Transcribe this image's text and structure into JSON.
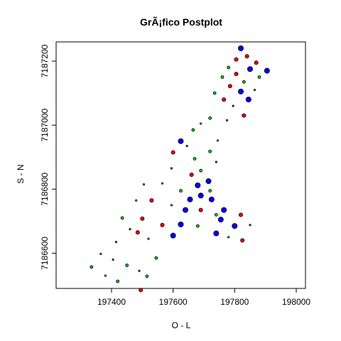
{
  "chart_data": {
    "type": "scatter",
    "title": "GrÃ¡fico Postplot",
    "xlabel": "O - L",
    "ylabel": "S - N",
    "xlim": [
      197220,
      198030
    ],
    "ylim": [
      7186490,
      7187260
    ],
    "xticks": [
      197400,
      197600,
      197800,
      198000
    ],
    "yticks": [
      7186600,
      7186800,
      7187000,
      7187200
    ],
    "colors": {
      "low": "#00cc00",
      "mid": "#ff0000",
      "high": "#0000ff"
    },
    "points": [
      {
        "x": 197820,
        "y": 7187240,
        "c": "high",
        "s": 4
      },
      {
        "x": 197840,
        "y": 7187215,
        "c": "mid",
        "s": 3
      },
      {
        "x": 197805,
        "y": 7187205,
        "c": "mid",
        "s": 3
      },
      {
        "x": 197870,
        "y": 7187195,
        "c": "mid",
        "s": 3
      },
      {
        "x": 197780,
        "y": 7187180,
        "c": "low",
        "s": 2
      },
      {
        "x": 197850,
        "y": 7187175,
        "c": "high",
        "s": 4
      },
      {
        "x": 197905,
        "y": 7187170,
        "c": "high",
        "s": 4
      },
      {
        "x": 197805,
        "y": 7187160,
        "c": "mid",
        "s": 3
      },
      {
        "x": 197880,
        "y": 7187150,
        "c": "low",
        "s": 2
      },
      {
        "x": 197760,
        "y": 7187150,
        "c": "low",
        "s": 2
      },
      {
        "x": 197830,
        "y": 7187135,
        "c": "low",
        "s": 2
      },
      {
        "x": 197785,
        "y": 7187122,
        "c": "mid",
        "s": 3
      },
      {
        "x": 197865,
        "y": 7187110,
        "c": "low",
        "s": 1
      },
      {
        "x": 197820,
        "y": 7187105,
        "c": "high",
        "s": 4
      },
      {
        "x": 197735,
        "y": 7187100,
        "c": "low",
        "s": 2
      },
      {
        "x": 197845,
        "y": 7187080,
        "c": "high",
        "s": 4
      },
      {
        "x": 197765,
        "y": 7187080,
        "c": "mid",
        "s": 3
      },
      {
        "x": 197795,
        "y": 7187060,
        "c": "low",
        "s": 1
      },
      {
        "x": 197830,
        "y": 7187030,
        "c": "mid",
        "s": 3
      },
      {
        "x": 197720,
        "y": 7187022,
        "c": "low",
        "s": 2
      },
      {
        "x": 197775,
        "y": 7187015,
        "c": "low",
        "s": 1
      },
      {
        "x": 197690,
        "y": 7187005,
        "c": "low",
        "s": 1
      },
      {
        "x": 197665,
        "y": 7186985,
        "c": "low",
        "s": 2
      },
      {
        "x": 197625,
        "y": 7186950,
        "c": "high",
        "s": 4
      },
      {
        "x": 197745,
        "y": 7186952,
        "c": "low",
        "s": 1
      },
      {
        "x": 197645,
        "y": 7186935,
        "c": "low",
        "s": 1
      },
      {
        "x": 197720,
        "y": 7186918,
        "c": "low",
        "s": 2
      },
      {
        "x": 197600,
        "y": 7186915,
        "c": "mid",
        "s": 3
      },
      {
        "x": 197670,
        "y": 7186895,
        "c": "low",
        "s": 2
      },
      {
        "x": 197740,
        "y": 7186885,
        "c": "low",
        "s": 1
      },
      {
        "x": 197595,
        "y": 7186865,
        "c": "low",
        "s": 1
      },
      {
        "x": 197690,
        "y": 7186858,
        "c": "low",
        "s": 2
      },
      {
        "x": 197660,
        "y": 7186845,
        "c": "mid",
        "s": 3
      },
      {
        "x": 197715,
        "y": 7186825,
        "c": "high",
        "s": 4
      },
      {
        "x": 197565,
        "y": 7186818,
        "c": "low",
        "s": 1
      },
      {
        "x": 197505,
        "y": 7186815,
        "c": "low",
        "s": 1
      },
      {
        "x": 197680,
        "y": 7186812,
        "c": "high",
        "s": 4
      },
      {
        "x": 197625,
        "y": 7186795,
        "c": "low",
        "s": 2
      },
      {
        "x": 197720,
        "y": 7186795,
        "c": "low",
        "s": 2
      },
      {
        "x": 197690,
        "y": 7186780,
        "c": "high",
        "s": 4
      },
      {
        "x": 197655,
        "y": 7186768,
        "c": "high",
        "s": 4
      },
      {
        "x": 197725,
        "y": 7186768,
        "c": "high",
        "s": 4
      },
      {
        "x": 197530,
        "y": 7186765,
        "c": "mid",
        "s": 3
      },
      {
        "x": 197480,
        "y": 7186765,
        "c": "low",
        "s": 1
      },
      {
        "x": 197595,
        "y": 7186750,
        "c": "low",
        "s": 1
      },
      {
        "x": 197765,
        "y": 7186735,
        "c": "high",
        "s": 4
      },
      {
        "x": 197640,
        "y": 7186735,
        "c": "high",
        "s": 4
      },
      {
        "x": 197690,
        "y": 7186735,
        "c": "mid",
        "s": 3
      },
      {
        "x": 197740,
        "y": 7186720,
        "c": "low",
        "s": 2
      },
      {
        "x": 197820,
        "y": 7186720,
        "c": "mid",
        "s": 3
      },
      {
        "x": 197435,
        "y": 7186710,
        "c": "low",
        "s": 2
      },
      {
        "x": 197500,
        "y": 7186708,
        "c": "mid",
        "s": 3
      },
      {
        "x": 197755,
        "y": 7186705,
        "c": "high",
        "s": 4
      },
      {
        "x": 197625,
        "y": 7186690,
        "c": "high",
        "s": 4
      },
      {
        "x": 197565,
        "y": 7186688,
        "c": "mid",
        "s": 3
      },
      {
        "x": 197850,
        "y": 7186688,
        "c": "low",
        "s": 1
      },
      {
        "x": 197800,
        "y": 7186685,
        "c": "high",
        "s": 4
      },
      {
        "x": 197680,
        "y": 7186685,
        "c": "low",
        "s": 2
      },
      {
        "x": 197460,
        "y": 7186675,
        "c": "low",
        "s": 1
      },
      {
        "x": 197485,
        "y": 7186665,
        "c": "mid",
        "s": 3
      },
      {
        "x": 197740,
        "y": 7186662,
        "c": "high",
        "s": 4
      },
      {
        "x": 197600,
        "y": 7186655,
        "c": "high",
        "s": 4
      },
      {
        "x": 197780,
        "y": 7186650,
        "c": "low",
        "s": 1
      },
      {
        "x": 197520,
        "y": 7186645,
        "c": "low",
        "s": 1
      },
      {
        "x": 197825,
        "y": 7186640,
        "c": "mid",
        "s": 3
      },
      {
        "x": 197415,
        "y": 7186635,
        "c": "low",
        "s": 1
      },
      {
        "x": 197365,
        "y": 7186598,
        "c": "low",
        "s": 1
      },
      {
        "x": 197545,
        "y": 7186585,
        "c": "low",
        "s": 2
      },
      {
        "x": 197405,
        "y": 7186580,
        "c": "low",
        "s": 1
      },
      {
        "x": 197450,
        "y": 7186562,
        "c": "low",
        "s": 2
      },
      {
        "x": 197335,
        "y": 7186557,
        "c": "low",
        "s": 2
      },
      {
        "x": 197490,
        "y": 7186545,
        "c": "low",
        "s": 1
      },
      {
        "x": 197380,
        "y": 7186530,
        "c": "low",
        "s": 1
      },
      {
        "x": 197515,
        "y": 7186528,
        "c": "low",
        "s": 2
      },
      {
        "x": 197420,
        "y": 7186512,
        "c": "low",
        "s": 2
      },
      {
        "x": 197495,
        "y": 7186485,
        "c": "mid",
        "s": 3
      }
    ]
  }
}
